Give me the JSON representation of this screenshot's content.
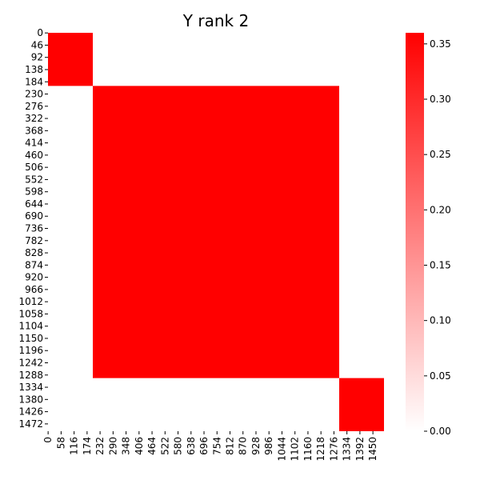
{
  "chart_data": {
    "type": "heatmap",
    "title": "Y rank 2",
    "n": 1500,
    "row_tick_labels": [
      "0",
      "46",
      "92",
      "138",
      "184",
      "230",
      "276",
      "322",
      "368",
      "414",
      "460",
      "506",
      "552",
      "598",
      "644",
      "690",
      "736",
      "782",
      "828",
      "874",
      "920",
      "966",
      "1012",
      "1058",
      "1104",
      "1150",
      "1196",
      "1242",
      "1288",
      "1334",
      "1380",
      "1426",
      "1472"
    ],
    "col_tick_labels": [
      "0",
      "58",
      "116",
      "174",
      "232",
      "290",
      "348",
      "406",
      "464",
      "522",
      "580",
      "638",
      "696",
      "754",
      "812",
      "870",
      "928",
      "986",
      "1044",
      "1102",
      "1160",
      "1218",
      "1276",
      "1334",
      "1392",
      "1450"
    ],
    "blocks": [
      {
        "start": 0,
        "end": 200,
        "value": 0.36
      },
      {
        "start": 200,
        "end": 1300,
        "value": 0.36
      },
      {
        "start": 1300,
        "end": 1500,
        "value": 0.36
      }
    ],
    "off_block_value": 0.0,
    "colorbar": {
      "min": 0.0,
      "max": 0.36,
      "ticks": [
        "0.00",
        "0.05",
        "0.10",
        "0.15",
        "0.20",
        "0.25",
        "0.30",
        "0.35"
      ],
      "tick_values": [
        0.0,
        0.05,
        0.1,
        0.15,
        0.2,
        0.25,
        0.3,
        0.35
      ]
    },
    "colors": {
      "low": "#ffffff",
      "high": "#ff0000"
    }
  }
}
